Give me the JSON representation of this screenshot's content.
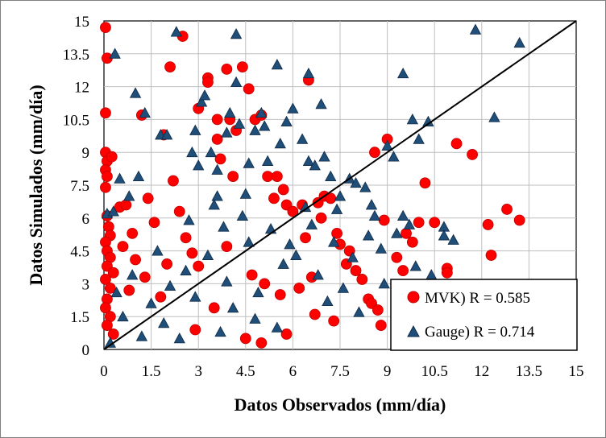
{
  "chart_data": {
    "type": "scatter",
    "xlabel": "Datos Observados (mm/día)",
    "ylabel": "Datos Simulados (mm/día)",
    "xlim": [
      0,
      15
    ],
    "ylim": [
      0,
      15
    ],
    "x_ticks": [
      0,
      1.5,
      3,
      4.5,
      6,
      7.5,
      9,
      10.5,
      12,
      13.5,
      15
    ],
    "x_tick_labels": [
      "0",
      "1.5",
      "3",
      "4.5",
      "6",
      "7.5",
      "9",
      "10.5",
      "12",
      "13.5",
      "15"
    ],
    "y_ticks": [
      0,
      1.5,
      3,
      4.5,
      6,
      7.5,
      9,
      10.5,
      12,
      13.5,
      15
    ],
    "y_tick_labels": [
      "0",
      "1.5",
      "3",
      "4.5",
      "6",
      "7.5",
      "9",
      "10.5",
      "12",
      "13.5",
      "15"
    ],
    "grid": true,
    "reference_line": {
      "name": "1:1",
      "x": [
        0,
        15
      ],
      "y": [
        0,
        15
      ]
    },
    "legend_position": "bottom-right",
    "series": [
      {
        "name": "MVK) R = 0.585",
        "marker": "circle",
        "color": "#ff0000",
        "points": [
          [
            0.05,
            14.7
          ],
          [
            0.1,
            13.3
          ],
          [
            0.05,
            10.8
          ],
          [
            0.05,
            9.0
          ],
          [
            0.1,
            8.6
          ],
          [
            0.05,
            8.2
          ],
          [
            0.1,
            7.9
          ],
          [
            0.05,
            7.4
          ],
          [
            0.25,
            8.8
          ],
          [
            0.1,
            6.1
          ],
          [
            0.15,
            5.6
          ],
          [
            0.2,
            5.2
          ],
          [
            0.05,
            4.9
          ],
          [
            0.1,
            4.5
          ],
          [
            0.2,
            4.2
          ],
          [
            0.1,
            3.8
          ],
          [
            0.3,
            3.5
          ],
          [
            0.05,
            3.2
          ],
          [
            0.2,
            2.8
          ],
          [
            0.1,
            2.3
          ],
          [
            0.05,
            1.9
          ],
          [
            0.2,
            1.5
          ],
          [
            0.1,
            1.1
          ],
          [
            0.3,
            0.7
          ],
          [
            0.5,
            6.5
          ],
          [
            0.7,
            6.6
          ],
          [
            0.9,
            5.3
          ],
          [
            0.6,
            4.7
          ],
          [
            1.0,
            4.1
          ],
          [
            1.2,
            10.7
          ],
          [
            1.4,
            6.9
          ],
          [
            1.6,
            5.8
          ],
          [
            1.3,
            3.3
          ],
          [
            1.9,
            9.8
          ],
          [
            2.1,
            12.9
          ],
          [
            2.5,
            14.3
          ],
          [
            2.2,
            7.7
          ],
          [
            2.4,
            6.3
          ],
          [
            2.6,
            5.1
          ],
          [
            2.8,
            4.4
          ],
          [
            3.0,
            11.0
          ],
          [
            3.0,
            3.8
          ],
          [
            3.3,
            12.4
          ],
          [
            3.3,
            12.2
          ],
          [
            3.6,
            10.5
          ],
          [
            3.6,
            9.6
          ],
          [
            3.7,
            8.7
          ],
          [
            3.9,
            12.8
          ],
          [
            4.0,
            10.5
          ],
          [
            4.2,
            10.0
          ],
          [
            4.1,
            7.9
          ],
          [
            4.4,
            12.9
          ],
          [
            4.6,
            11.9
          ],
          [
            4.8,
            10.5
          ],
          [
            5.0,
            10.7
          ],
          [
            5.2,
            7.9
          ],
          [
            5.5,
            7.9
          ],
          [
            5.4,
            6.9
          ],
          [
            5.7,
            7.3
          ],
          [
            5.8,
            6.6
          ],
          [
            6.0,
            6.3
          ],
          [
            6.3,
            6.6
          ],
          [
            6.5,
            12.3
          ],
          [
            6.8,
            6.7
          ],
          [
            7.0,
            7.0
          ],
          [
            7.2,
            6.9
          ],
          [
            6.9,
            6.0
          ],
          [
            7.4,
            5.3
          ],
          [
            7.5,
            4.8
          ],
          [
            7.8,
            4.5
          ],
          [
            8.0,
            3.6
          ],
          [
            8.2,
            3.2
          ],
          [
            8.4,
            2.3
          ],
          [
            8.5,
            2.1
          ],
          [
            8.7,
            1.8
          ],
          [
            8.8,
            1.1
          ],
          [
            8.6,
            9.0
          ],
          [
            9.0,
            9.6
          ],
          [
            8.9,
            5.9
          ],
          [
            9.3,
            4.2
          ],
          [
            9.5,
            3.6
          ],
          [
            9.6,
            5.3
          ],
          [
            9.8,
            4.9
          ],
          [
            10.0,
            5.8
          ],
          [
            10.2,
            7.6
          ],
          [
            10.5,
            5.8
          ],
          [
            10.9,
            3.7
          ],
          [
            10.9,
            3.5
          ],
          [
            11.2,
            9.4
          ],
          [
            11.7,
            8.9
          ],
          [
            12.2,
            5.7
          ],
          [
            12.3,
            4.3
          ],
          [
            12.8,
            6.4
          ],
          [
            13.2,
            5.9
          ],
          [
            5.1,
            3.0
          ],
          [
            6.2,
            2.8
          ],
          [
            6.7,
            1.6
          ],
          [
            7.3,
            1.3
          ],
          [
            5.8,
            0.7
          ],
          [
            5.0,
            0.3
          ],
          [
            4.5,
            0.5
          ],
          [
            2.9,
            0.9
          ],
          [
            3.5,
            1.9
          ],
          [
            1.8,
            2.4
          ],
          [
            0.8,
            2.7
          ],
          [
            2.0,
            3.9
          ],
          [
            3.9,
            4.7
          ],
          [
            4.7,
            3.4
          ],
          [
            5.6,
            2.5
          ],
          [
            6.6,
            3.3
          ],
          [
            7.7,
            3.9
          ],
          [
            6.4,
            5.1
          ]
        ]
      },
      {
        "name": "Gauge) R = 0.714",
        "marker": "triangle",
        "color": "#1f4e79",
        "points": [
          [
            0.35,
            13.5
          ],
          [
            0.1,
            6.2
          ],
          [
            0.3,
            6.3
          ],
          [
            0.5,
            7.8
          ],
          [
            0.8,
            7.0
          ],
          [
            1.1,
            7.9
          ],
          [
            1.0,
            11.7
          ],
          [
            1.3,
            10.8
          ],
          [
            1.8,
            9.8
          ],
          [
            2.0,
            9.8
          ],
          [
            2.3,
            14.5
          ],
          [
            2.8,
            9.0
          ],
          [
            2.9,
            10.0
          ],
          [
            3.0,
            8.4
          ],
          [
            3.1,
            11.3
          ],
          [
            3.2,
            11.6
          ],
          [
            3.4,
            9.0
          ],
          [
            3.6,
            8.2
          ],
          [
            3.6,
            7.0
          ],
          [
            3.9,
            9.9
          ],
          [
            4.0,
            10.8
          ],
          [
            4.2,
            14.4
          ],
          [
            4.2,
            12.2
          ],
          [
            4.3,
            10.3
          ],
          [
            4.5,
            7.1
          ],
          [
            4.6,
            8.5
          ],
          [
            4.8,
            10.0
          ],
          [
            5.0,
            10.8
          ],
          [
            5.1,
            10.2
          ],
          [
            5.2,
            8.6
          ],
          [
            5.5,
            13.0
          ],
          [
            5.6,
            9.4
          ],
          [
            5.8,
            10.4
          ],
          [
            6.0,
            11.0
          ],
          [
            6.3,
            9.6
          ],
          [
            6.5,
            12.6
          ],
          [
            6.5,
            8.6
          ],
          [
            6.7,
            8.4
          ],
          [
            6.9,
            11.2
          ],
          [
            7.0,
            8.8
          ],
          [
            7.2,
            7.9
          ],
          [
            7.4,
            6.4
          ],
          [
            7.5,
            7.0
          ],
          [
            7.8,
            7.8
          ],
          [
            8.0,
            7.6
          ],
          [
            8.3,
            7.4
          ],
          [
            8.5,
            6.6
          ],
          [
            8.6,
            6.1
          ],
          [
            8.4,
            5.2
          ],
          [
            8.8,
            4.6
          ],
          [
            9.0,
            9.3
          ],
          [
            9.2,
            8.8
          ],
          [
            9.3,
            5.3
          ],
          [
            9.5,
            12.6
          ],
          [
            9.5,
            6.1
          ],
          [
            9.7,
            5.7
          ],
          [
            9.8,
            10.5
          ],
          [
            10.0,
            9.6
          ],
          [
            10.3,
            10.4
          ],
          [
            10.8,
            5.6
          ],
          [
            10.8,
            5.2
          ],
          [
            11.1,
            5.0
          ],
          [
            11.8,
            14.6
          ],
          [
            12.4,
            10.6
          ],
          [
            13.2,
            14.0
          ],
          [
            6.4,
            6.5
          ],
          [
            6.8,
            3.4
          ],
          [
            7.1,
            2.2
          ],
          [
            7.6,
            2.8
          ],
          [
            8.1,
            1.7
          ],
          [
            0.2,
            0.3
          ],
          [
            0.6,
            1.5
          ],
          [
            1.5,
            2.1
          ],
          [
            2.1,
            2.9
          ],
          [
            2.6,
            3.6
          ],
          [
            3.3,
            4.3
          ],
          [
            3.8,
            5.6
          ],
          [
            4.4,
            6.1
          ],
          [
            5.3,
            5.5
          ],
          [
            5.7,
            3.9
          ],
          [
            6.1,
            4.3
          ],
          [
            4.9,
            2.6
          ],
          [
            4.1,
            1.9
          ],
          [
            3.7,
            0.8
          ],
          [
            2.4,
            0.5
          ],
          [
            1.2,
            0.6
          ],
          [
            0.4,
            2.6
          ],
          [
            1.7,
            4.5
          ],
          [
            2.7,
            5.9
          ],
          [
            3.5,
            6.6
          ],
          [
            4.6,
            4.9
          ],
          [
            5.9,
            4.8
          ],
          [
            6.6,
            5.7
          ],
          [
            7.3,
            4.9
          ],
          [
            7.9,
            4.2
          ],
          [
            8.9,
            3.0
          ],
          [
            9.9,
            3.8
          ],
          [
            10.4,
            3.4
          ],
          [
            0.9,
            3.4
          ],
          [
            1.9,
            1.2
          ],
          [
            2.9,
            2.4
          ],
          [
            3.9,
            3.1
          ],
          [
            4.8,
            1.4
          ],
          [
            5.5,
            1.0
          ]
        ]
      }
    ]
  }
}
